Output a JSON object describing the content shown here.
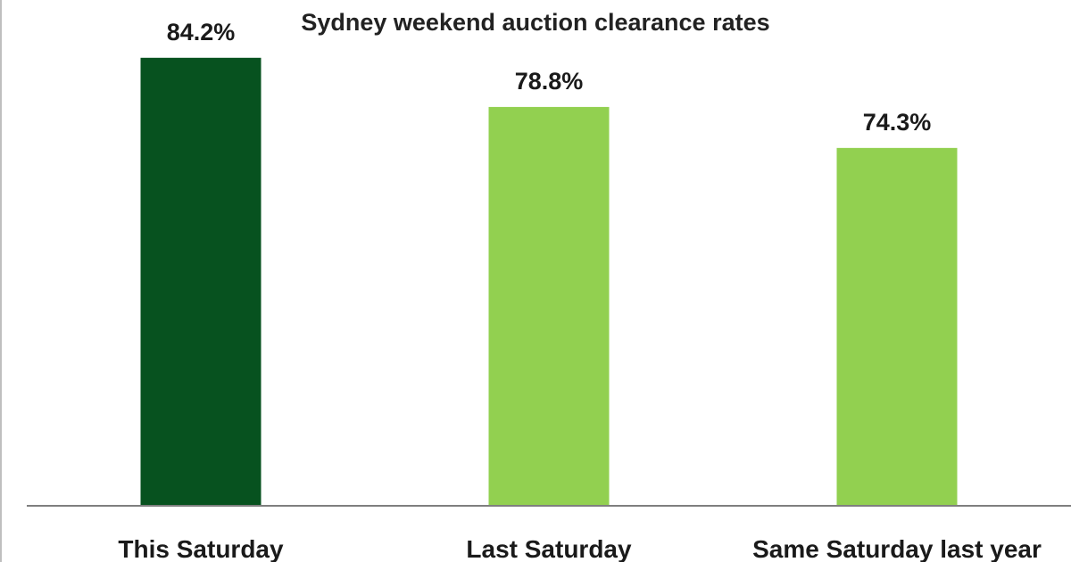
{
  "chart_data": {
    "type": "bar",
    "title": "Sydney weekend auction clearance rates",
    "categories": [
      "This Saturday",
      "Last Saturday",
      "Same Saturday last year"
    ],
    "values": [
      84.2,
      78.8,
      74.3
    ],
    "value_labels": [
      "84.2%",
      "78.8%",
      "74.3%"
    ],
    "bar_colors": [
      "#07521f",
      "#92d050",
      "#92d050"
    ],
    "ylim": [
      35,
      88
    ],
    "grid": false,
    "legend": "none",
    "axis_color": "#7f7f7f"
  }
}
